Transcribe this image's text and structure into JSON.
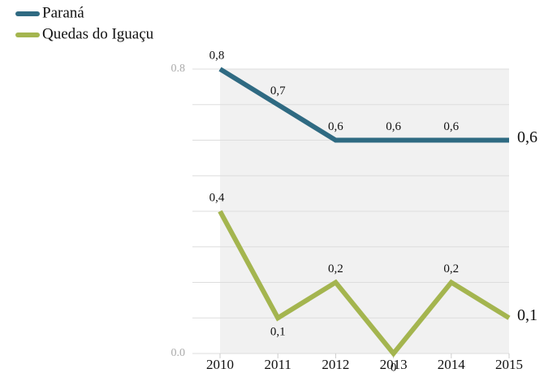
{
  "chart_data": {
    "type": "line",
    "categories": [
      "2010",
      "2011",
      "2012",
      "2013",
      "2014",
      "2015"
    ],
    "series": [
      {
        "name": "Paraná",
        "color": "#2f6a82",
        "values": [
          0.8,
          0.7,
          0.6,
          0.6,
          0.6,
          0.6
        ],
        "value_labels": [
          "0,8",
          "0,7",
          "0,6",
          "0,6",
          "0,6",
          "0,6"
        ]
      },
      {
        "name": "Quedas do Iguaçu",
        "color": "#a4b54f",
        "values": [
          0.4,
          0.1,
          0.2,
          0,
          0.2,
          0.1
        ],
        "value_labels": [
          "0,4",
          "0,1",
          "0,2",
          "0",
          "0,2",
          "0,1"
        ]
      }
    ],
    "ylim": [
      0,
      0.8
    ],
    "yticks": [
      {
        "value": 0,
        "label": "0.0"
      },
      {
        "value": 0.8,
        "label": "0.8"
      }
    ],
    "minor_yticks": [
      0.1,
      0.2,
      0.3,
      0.4,
      0.5,
      0.6,
      0.7
    ],
    "grid": true,
    "legend": "top-left"
  }
}
